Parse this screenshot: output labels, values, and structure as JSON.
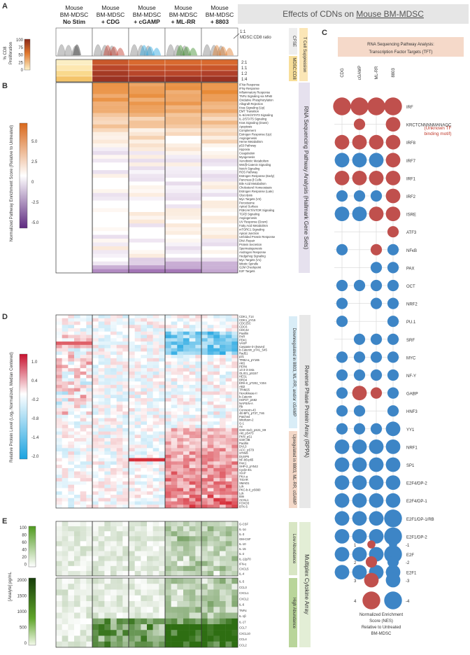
{
  "panels": {
    "a": "A",
    "b": "B",
    "c": "C",
    "d": "D",
    "e": "E"
  },
  "title": {
    "main": "Effects of CDNs on ",
    "underlined": "Mouse BM-MDSC"
  },
  "columns": [
    {
      "l1": "Mouse",
      "l2": "BM-MDSC",
      "l3": "No Stim",
      "color": "#222222"
    },
    {
      "l1": "Mouse",
      "l2": "BM-MDSC",
      "l3": "+ CDG",
      "color": "#c0392b"
    },
    {
      "l1": "Mouse",
      "l2": "BM-MDSC",
      "l3": "+ cGAMP",
      "color": "#2aa6df"
    },
    {
      "l1": "Mouse",
      "l2": "BM-MDSC",
      "l3": "+ ML-RR",
      "color": "#3e8e2d"
    },
    {
      "l1": "Mouse",
      "l2": "BM-MDSC",
      "l3": "+ 8803",
      "color": "#e07b2a"
    }
  ],
  "panel_a": {
    "ylabel1": "% CD8",
    "ylabel2": "Proliferation",
    "ticks": [
      "100",
      "75",
      "50",
      "25",
      "0"
    ],
    "ratio_label": "1:1",
    "ratio_sub": "MDSC:CD8 ratio",
    "ratios": [
      "2:1",
      "1:1",
      "1:2",
      "1:4"
    ],
    "cfse": "CFSE",
    "mdsc_cd8": "MDSC:CD8",
    "suppression": "T Cell Suppression"
  },
  "panel_b": {
    "ylabel1": "Normalized Pathway Enrichment Score (Relative to Untreated)",
    "ticks": [
      "5.0",
      "2.5",
      "0",
      "-2.5",
      "-5.0"
    ],
    "side_label": "RNA Sequencing Pathway Analysis (Hallmark Gene Sets)",
    "pathways": [
      "IFNα Response",
      "IFNγ Response",
      "Inflammatory Response",
      "TNFα Signaling via NFκB",
      "Oxidative Phosphorylation",
      "Allograft Rejection",
      "Kras Signaling (Up)",
      "EMT Transition",
      "IL-6/JAK/STAT3 Signaling",
      "IL-2/STAT5 Signaling",
      "Kras Signaling (Down)",
      "Apoptosis",
      "Complement",
      "Estrogen Response (Up)",
      "Angiogenesis",
      "Heme Metabolism",
      "p53 Pathway",
      "Hypoxia",
      "Coagulation",
      "Myogenesis",
      "Xenobiotic Metabolism",
      "Wnt/β-Catenin Signaling",
      "Notch Signaling",
      "ROS Pathway",
      "Estrogen Response (Early)",
      "Pancreas β Cells",
      "Bile Acid Metabolism",
      "Cholesterol Homeostasis",
      "Estrogen Response (Late)",
      "Glycolysis",
      "Myc Targets (V2)",
      "Peroxisome",
      "Apical Surface",
      "PI3K/AKT/mTOR Signaling",
      "TGFβ Signaling",
      "Angiogenesis",
      "UV Response (Down)",
      "Fatty Acid Metabolism",
      "mTORC1 Signaling",
      "Apical Junction",
      "Unfolded Protein Response",
      "DNA Repair",
      "Protein Secretion",
      "Spermatogenesis",
      "Androgen Response",
      "Hedgehog Signaling",
      "Myc Targets (V1)",
      "Mitotic Spindle",
      "G2M Checkpoint",
      "E2F Targets"
    ]
  },
  "panel_c": {
    "title1": "RNA Sequencing Pathway Analysis:",
    "title2": "Transcription Factor Targets (TFT)",
    "col_labels": [
      "CDG",
      "cGAMP",
      "ML-RR",
      "8803"
    ],
    "rows": [
      {
        "name": "IRF",
        "v": [
          4,
          4,
          4,
          4
        ]
      },
      {
        "name": "KRCTCNNNNMANAGC",
        "v": [
          0,
          2,
          0,
          3
        ]
      },
      {
        "name": "IRF8",
        "v": [
          3,
          3,
          3,
          3
        ]
      },
      {
        "name": "IRF7",
        "v": [
          -3,
          -3,
          -3,
          3
        ]
      },
      {
        "name": "IRF1",
        "v": [
          3,
          3,
          3,
          3
        ]
      },
      {
        "name": "IRF2",
        "v": [
          -2,
          -2,
          -2,
          3
        ]
      },
      {
        "name": "ISRE",
        "v": [
          -3,
          -3,
          3,
          3
        ]
      },
      {
        "name": "ATF3",
        "v": [
          0,
          0,
          0,
          2
        ]
      },
      {
        "name": "NFκB",
        "v": [
          -2,
          0,
          2,
          -2
        ]
      },
      {
        "name": "PAX",
        "v": [
          0,
          0,
          -2,
          -2
        ]
      },
      {
        "name": "OCT",
        "v": [
          -2,
          -2,
          -2,
          -2
        ]
      },
      {
        "name": "NRF2",
        "v": [
          -2,
          0,
          -2,
          -2
        ]
      },
      {
        "name": "PU.1",
        "v": [
          -2,
          0,
          0,
          -2
        ]
      },
      {
        "name": "SRF",
        "v": [
          0,
          -2,
          -2,
          -2
        ]
      },
      {
        "name": "MYC",
        "v": [
          -2,
          -2,
          -2,
          -2
        ]
      },
      {
        "name": "NF-Y",
        "v": [
          -2,
          -2,
          -2,
          -2
        ]
      },
      {
        "name": "GABP",
        "v": [
          -2,
          3,
          2,
          -2
        ]
      },
      {
        "name": "HNF3",
        "v": [
          -2,
          -2,
          0,
          -2
        ]
      },
      {
        "name": "YY1",
        "v": [
          -2,
          -2,
          -2,
          -3
        ]
      },
      {
        "name": "NRF1",
        "v": [
          -3,
          -3,
          -3,
          -3
        ]
      },
      {
        "name": "SP1",
        "v": [
          -3,
          -3,
          -3,
          -3
        ]
      },
      {
        "name": "E2F4/DP-2",
        "v": [
          -3,
          -3,
          -3,
          -3
        ]
      },
      {
        "name": "E2F4/DP-1",
        "v": [
          -3,
          -3,
          -3,
          -3
        ]
      },
      {
        "name": "E2F1/DP-1/RB",
        "v": [
          -3,
          -3,
          -3,
          -4
        ]
      },
      {
        "name": "E2F1/DP-2",
        "v": [
          -3,
          -3,
          -3,
          -4
        ]
      },
      {
        "name": "E2F",
        "v": [
          -3,
          -3,
          -3,
          -4
        ]
      },
      {
        "name": "E2F1",
        "v": [
          -3,
          -3,
          -3,
          -3
        ]
      }
    ],
    "annotation1": "(Unknown TF",
    "annotation2": "binding motif)",
    "legend_pos": [
      "1",
      "2",
      "3",
      "4"
    ],
    "legend_neg": [
      "-1",
      "-2",
      "-3",
      "-4"
    ],
    "legend_caption": [
      "Normalized Enrichment",
      "Score (NES)",
      "Relative to Untreated",
      "BM-MDSC"
    ],
    "pos_color": "#c0504d",
    "neg_color": "#3d85c6"
  },
  "panel_d": {
    "ylabel1": "Relative Protein Level (Log₂ Normalized, Median Centered)",
    "ticks": [
      "1.0",
      "0.4",
      "-0.2",
      "-0.8",
      "-1.4",
      "-2.0"
    ],
    "side_label": "Reverse Phase Protein Array (RPPA)",
    "down_label": "Downregulated in 8803, ML-RR, and/or cGAMP",
    "up_label": "Upregulated in 8803, ML-RR, cGAMP",
    "proteins": [
      "CDK1_T14",
      "CDK1_pY15",
      "CDC25C",
      "CDC6",
      "CDC42",
      "Paxillin",
      "PAR",
      "PDK1",
      "VASP",
      "Caspase-3-cleaved",
      "b-Catenin_pT41_S45",
      "Rad51",
      "p21",
      "TRB2-a_pY165",
      "Akt1",
      "PERK",
      "14-3-3-zeta",
      "OLIG1_pS157",
      "HES1",
      "BRD4",
      "ERK-II_pT202_Y204",
      "Akt2",
      "TRIM25",
      "Hexokinase-II",
      "b-Catenin",
      "HSP27_pS82",
      "NAPSIN-A",
      "Rb",
      "Connexin-43",
      "4E-BP1_pT37_T46",
      "Patched",
      "Mitofusin-2",
      "G-1",
      "Ax",
      "GSK-3a-b_pS21_S9",
      "Akt_pS473",
      "PKN_pS1",
      "GSK-3B",
      "Pacillin",
      "DVL3",
      "ACC_pS79",
      "STING",
      "DUSP6",
      "NF-kB-p65",
      "PAK1",
      "SHP-2_pY542",
      "Cyclin-E1",
      "XIAP",
      "PKA-a",
      "TIGAR",
      "SMAD1",
      "Lck",
      "PKC-b-II_pS660",
      "Lck",
      "Bim",
      "ACSL1",
      "FOXO3",
      "BTK-5"
    ]
  },
  "panel_e": {
    "ylabel1": "[Analyte] pg/mL",
    "low_ticks": [
      "100",
      "80",
      "60",
      "40",
      "20",
      "0"
    ],
    "high_ticks": [
      "2000",
      "1500",
      "1000",
      "500",
      "0"
    ],
    "side_label": "Multiplex Cytokine Array",
    "low_label": "Low Abundance",
    "high_label": "High Abundance",
    "low_analytes": [
      "G-CSF",
      "IL-1α",
      "IL-3",
      "GM-CSF",
      "IL-10",
      "IL-15",
      "IL-2",
      "IL-12p70",
      "IFN-γ",
      "CXCL5",
      "IL-4"
    ],
    "high_analytes": [
      "IL-5",
      "CCL3",
      "CXCL1",
      "CXCL2",
      "IL-6",
      "TNFα",
      "IL-1β",
      "IL-17",
      "CCL7",
      "CXCL10",
      "CCL4",
      "CCL2"
    ]
  }
}
